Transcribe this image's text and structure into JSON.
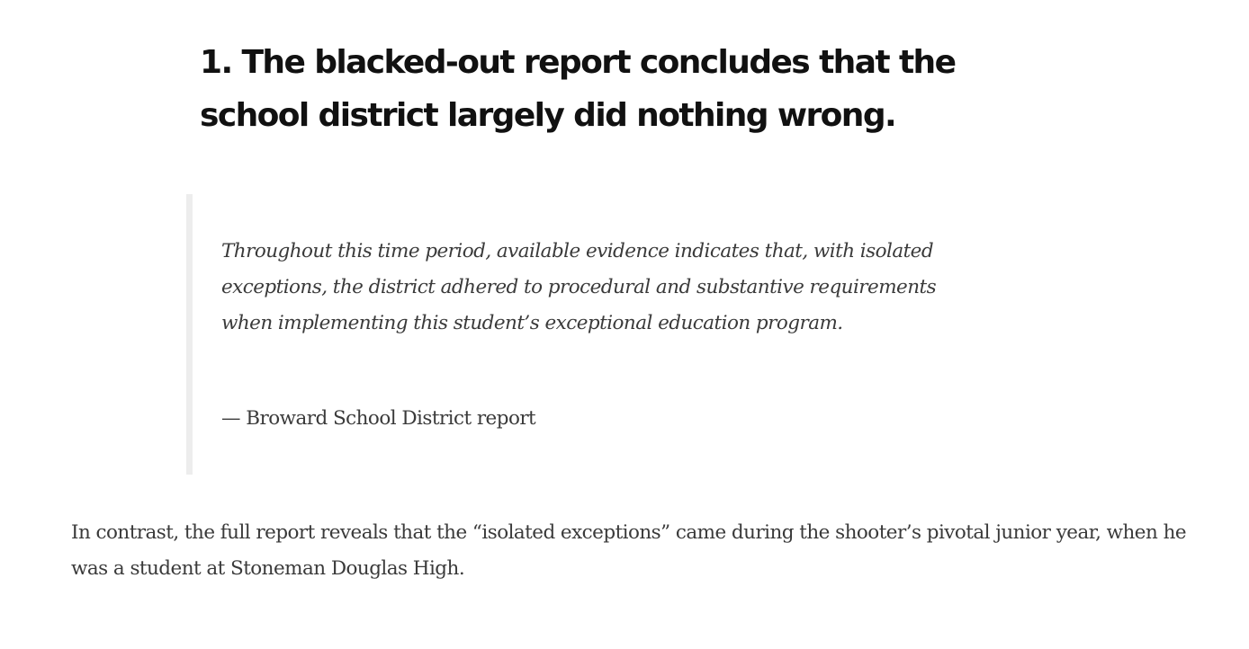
{
  "article": {
    "heading": "1. The blacked-out report concludes that the school district largely did nothing wrong.",
    "quote": {
      "text": "Throughout this time period, available evidence indicates that, with isolated exceptions, the district adhered to procedural and substantive requirements when implementing this student’s exceptional education program.",
      "attribution": "— Broward School District report"
    },
    "paragraph": "In contrast, the full report reveals that the “isolated exceptions” came during the shooter’s pivotal junior year, when he was a student at Stoneman Douglas High."
  },
  "colors": {
    "heading": "#111111",
    "body_text": "#3a3a3a",
    "quote_border": "#ededed",
    "background": "#ffffff"
  }
}
